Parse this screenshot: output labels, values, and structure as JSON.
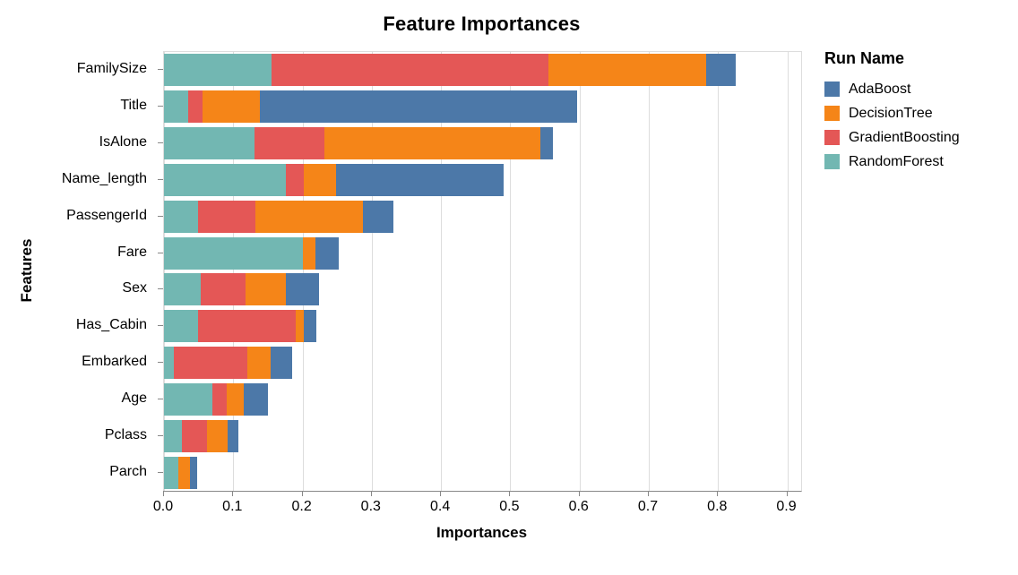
{
  "title": "Feature Importances",
  "x_axis": {
    "label": "Importances",
    "tick_labels": [
      "0.0",
      "0.1",
      "0.2",
      "0.3",
      "0.4",
      "0.5",
      "0.6",
      "0.7",
      "0.8",
      "0.9"
    ]
  },
  "y_axis": {
    "label": "Features"
  },
  "legend": {
    "title": "Run Name",
    "items": [
      {
        "label": "AdaBoost",
        "color": "#4c78a8"
      },
      {
        "label": "DecisionTree",
        "color": "#f58518"
      },
      {
        "label": "GradientBoosting",
        "color": "#e45756"
      },
      {
        "label": "RandomForest",
        "color": "#72b7b2"
      }
    ]
  },
  "colors": {
    "adaboost_blue": "#4c78a8",
    "decisiontree_orange": "#f58518",
    "gradientboosting_red": "#e45756",
    "randomforest_teal": "#72b7b2",
    "gridline": "#dddddd",
    "axis_line": "#888888"
  },
  "chart_data": {
    "type": "bar",
    "orientation": "horizontal",
    "stacked": true,
    "title": "Feature Importances",
    "xlabel": "Importances",
    "ylabel": "Features",
    "legend_title": "Run Name",
    "legend_position": "right",
    "grid": true,
    "xlim": [
      0,
      0.92
    ],
    "x_ticks": [
      0.0,
      0.1,
      0.2,
      0.3,
      0.4,
      0.5,
      0.6,
      0.7,
      0.8,
      0.9
    ],
    "categories": [
      "FamilySize",
      "Title",
      "IsAlone",
      "Name_length",
      "PassengerId",
      "Fare",
      "Sex",
      "Has_Cabin",
      "Embarked",
      "Age",
      "Pclass",
      "Parch"
    ],
    "stack_order_note": "segments drawn left-to-right: RandomForest, GradientBoosting, DecisionTree, AdaBoost",
    "series": [
      {
        "name": "RandomForest",
        "color": "#72b7b2",
        "values": [
          0.155,
          0.035,
          0.13,
          0.176,
          0.049,
          0.201,
          0.053,
          0.049,
          0.014,
          0.07,
          0.026,
          0.021
        ]
      },
      {
        "name": "GradientBoosting",
        "color": "#e45756",
        "values": [
          0.4,
          0.02,
          0.102,
          0.026,
          0.083,
          0.0,
          0.065,
          0.141,
          0.106,
          0.02,
          0.036,
          0.0
        ]
      },
      {
        "name": "DecisionTree",
        "color": "#f58518",
        "values": [
          0.228,
          0.084,
          0.312,
          0.046,
          0.155,
          0.018,
          0.058,
          0.012,
          0.034,
          0.025,
          0.03,
          0.017
        ]
      },
      {
        "name": "AdaBoost",
        "color": "#4c78a8",
        "values": [
          0.042,
          0.457,
          0.018,
          0.243,
          0.044,
          0.033,
          0.048,
          0.018,
          0.031,
          0.035,
          0.016,
          0.01
        ]
      }
    ],
    "bar_totals": [
      0.825,
      0.596,
      0.562,
      0.491,
      0.331,
      0.252,
      0.224,
      0.22,
      0.185,
      0.15,
      0.108,
      0.048
    ]
  }
}
